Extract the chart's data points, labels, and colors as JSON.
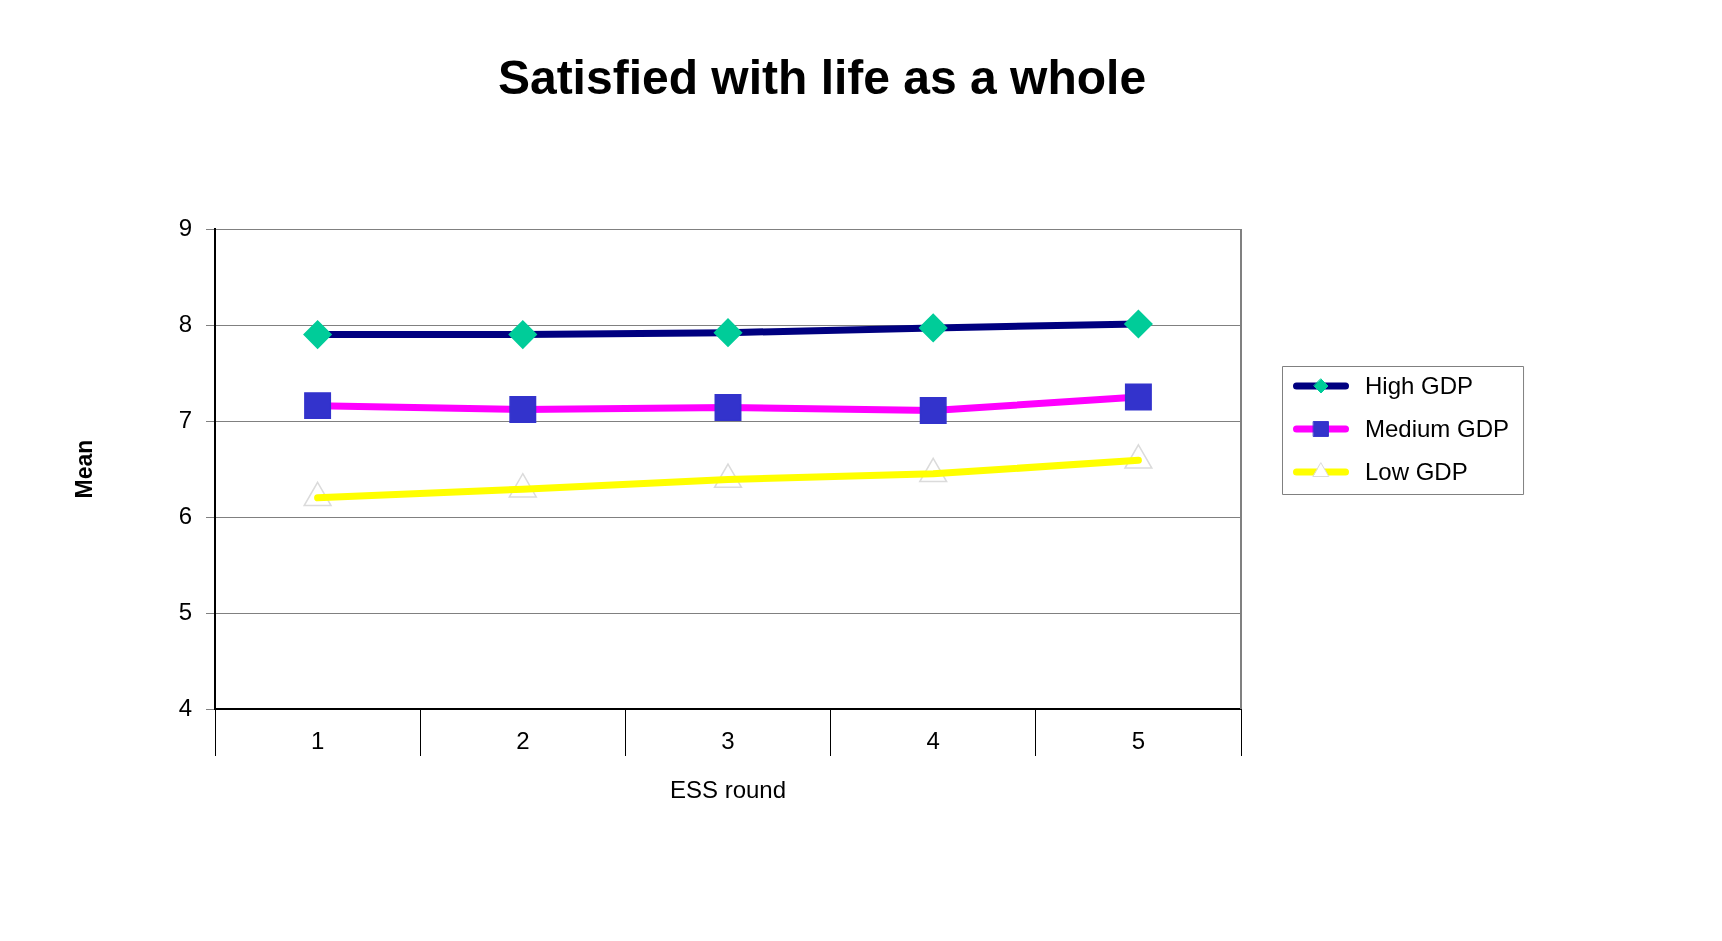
{
  "chart_data": {
    "type": "line",
    "title": "Satisfied with life as a whole",
    "xlabel": "ESS round",
    "ylabel": "Mean",
    "categories": [
      "1",
      "2",
      "3",
      "4",
      "5"
    ],
    "ylim": [
      4,
      9
    ],
    "yticks": [
      4,
      5,
      6,
      7,
      8,
      9
    ],
    "grid": "y",
    "legend": "right",
    "series": [
      {
        "name": "High GDP",
        "color": "#000080",
        "colors": [
          "#00cc99",
          "#00cc99",
          "#00cc99",
          "#00cc99",
          "#00cc99"
        ],
        "marker": "diamond",
        "values": [
          7.9,
          7.9,
          7.92,
          7.97,
          8.01
        ]
      },
      {
        "name": "Medium GDP",
        "color": "#ff00ff",
        "colors": [
          "#3333cc",
          "#3333cc",
          "#3333cc",
          "#3333cc",
          "#3333cc"
        ],
        "marker": "square",
        "values": [
          7.16,
          7.12,
          7.14,
          7.11,
          7.25
        ]
      },
      {
        "name": "Low GDP",
        "color": "#ffff00",
        "colors": [
          "#ffffff",
          "#ffffff",
          "#ffffff",
          "#ffffff",
          "#ffffff"
        ],
        "marker": "triangle",
        "values": [
          6.2,
          6.29,
          6.39,
          6.45,
          6.59
        ]
      }
    ]
  }
}
